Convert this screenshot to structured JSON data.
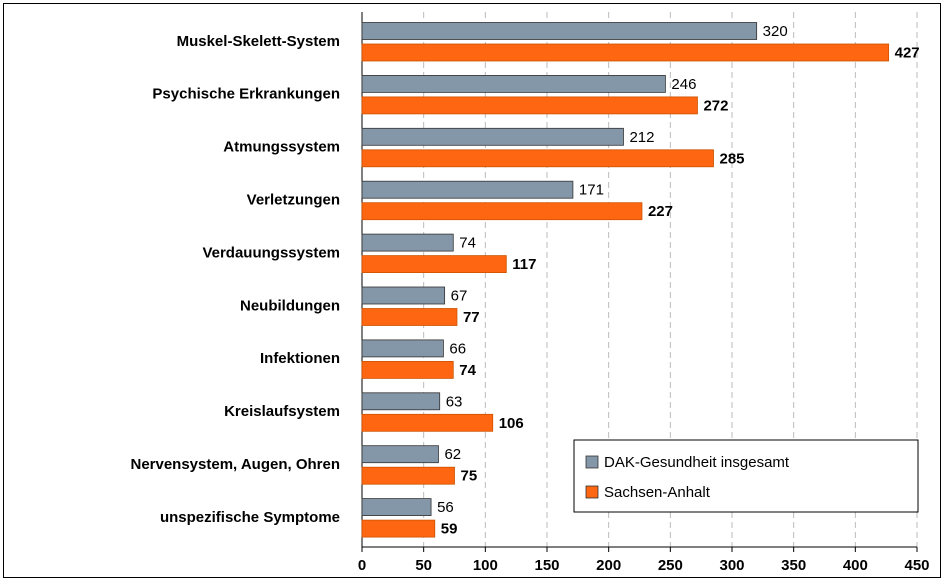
{
  "chart_data": {
    "type": "bar",
    "orientation": "horizontal",
    "categories": [
      "Muskel-Skelett-System",
      "Psychische Erkrankungen",
      "Atmungssystem",
      "Verletzungen",
      "Verdauungssystem",
      "Neubildungen",
      "Infektionen",
      "Kreislaufsystem",
      "Nervensystem, Augen, Ohren",
      "unspezifische Symptome"
    ],
    "series": [
      {
        "name": "DAK-Gesundheit insgesamt",
        "color": "#8497a8",
        "values": [
          320,
          246,
          212,
          171,
          74,
          67,
          66,
          63,
          62,
          56
        ]
      },
      {
        "name": "Sachsen-Anhalt",
        "color": "#ff6611",
        "values": [
          427,
          272,
          285,
          227,
          117,
          77,
          74,
          106,
          75,
          59
        ]
      }
    ],
    "xlim": [
      0,
      450
    ],
    "xticks": [
      0,
      50,
      100,
      150,
      200,
      250,
      300,
      350,
      400,
      450
    ],
    "grid": true,
    "legend": "lower right"
  }
}
